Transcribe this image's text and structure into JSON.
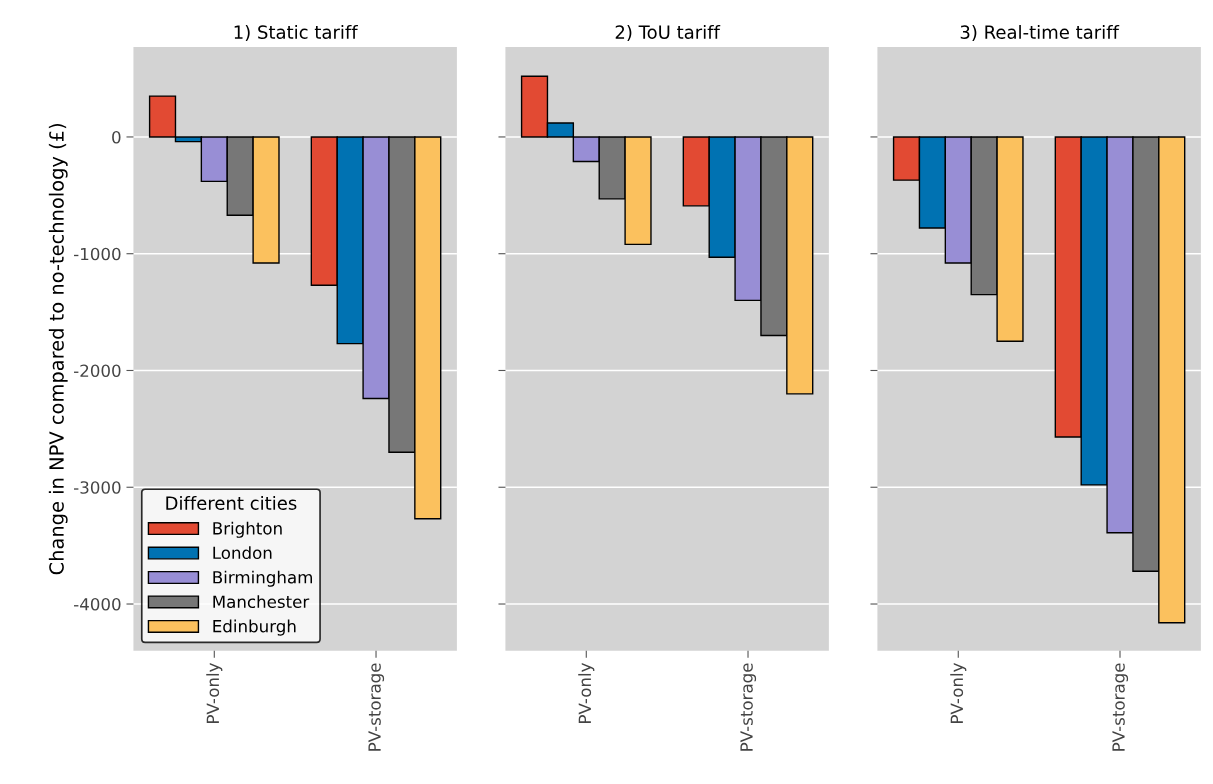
{
  "chart_data": [
    {
      "type": "bar",
      "title": "1) Static tariff",
      "ylabel": "Change in NPV compared to no-technology (£)",
      "categories": [
        "PV-only",
        "PV-storage"
      ],
      "ylim": [
        -4400,
        770
      ],
      "yticks": [
        0,
        -1000,
        -2000,
        -3000,
        -4000
      ],
      "grid": "y",
      "legend": "bottom left",
      "legend_title": "Different cities",
      "series": [
        {
          "name": "Brighton",
          "color": "#e24a33",
          "values": [
            350,
            -1270
          ]
        },
        {
          "name": "London",
          "color": "#0072b2",
          "values": [
            -40,
            -1770
          ]
        },
        {
          "name": "Birmingham",
          "color": "#988ed5",
          "values": [
            -380,
            -2240
          ]
        },
        {
          "name": "Manchester",
          "color": "#777777",
          "values": [
            -670,
            -2700
          ]
        },
        {
          "name": "Edinburgh",
          "color": "#fbc15e",
          "values": [
            -1080,
            -3270
          ]
        }
      ]
    },
    {
      "type": "bar",
      "title": "2) ToU tariff",
      "categories": [
        "PV-only",
        "PV-storage"
      ],
      "ylim": [
        -4400,
        770
      ],
      "yticks": [
        0,
        -1000,
        -2000,
        -3000,
        -4000
      ],
      "grid": "y",
      "tick_labels": "x",
      "series": [
        {
          "color": "#e24a33",
          "values": [
            520,
            -590
          ]
        },
        {
          "color": "#0072b2",
          "values": [
            120,
            -1030
          ]
        },
        {
          "color": "#988ed5",
          "values": [
            -210,
            -1400
          ]
        },
        {
          "color": "#777777",
          "values": [
            -530,
            -1700
          ]
        },
        {
          "color": "#fbc15e",
          "values": [
            -920,
            -2200
          ]
        }
      ]
    },
    {
      "type": "bar",
      "title": "3) Real-time tariff",
      "categories": [
        "PV-only",
        "PV-storage"
      ],
      "ylim": [
        -4400,
        770
      ],
      "yticks": [
        0,
        -1000,
        -2000,
        -3000,
        -4000
      ],
      "grid": "y",
      "tick_labels": "x",
      "series": [
        {
          "color": "#e24a33",
          "values": [
            -370,
            -2570
          ]
        },
        {
          "color": "#0072b2",
          "values": [
            -780,
            -2980
          ]
        },
        {
          "color": "#988ed5",
          "values": [
            -1080,
            -3390
          ]
        },
        {
          "color": "#777777",
          "values": [
            -1350,
            -3720
          ]
        },
        {
          "color": "#fbc15e",
          "values": [
            -1750,
            -4160
          ]
        }
      ]
    }
  ]
}
